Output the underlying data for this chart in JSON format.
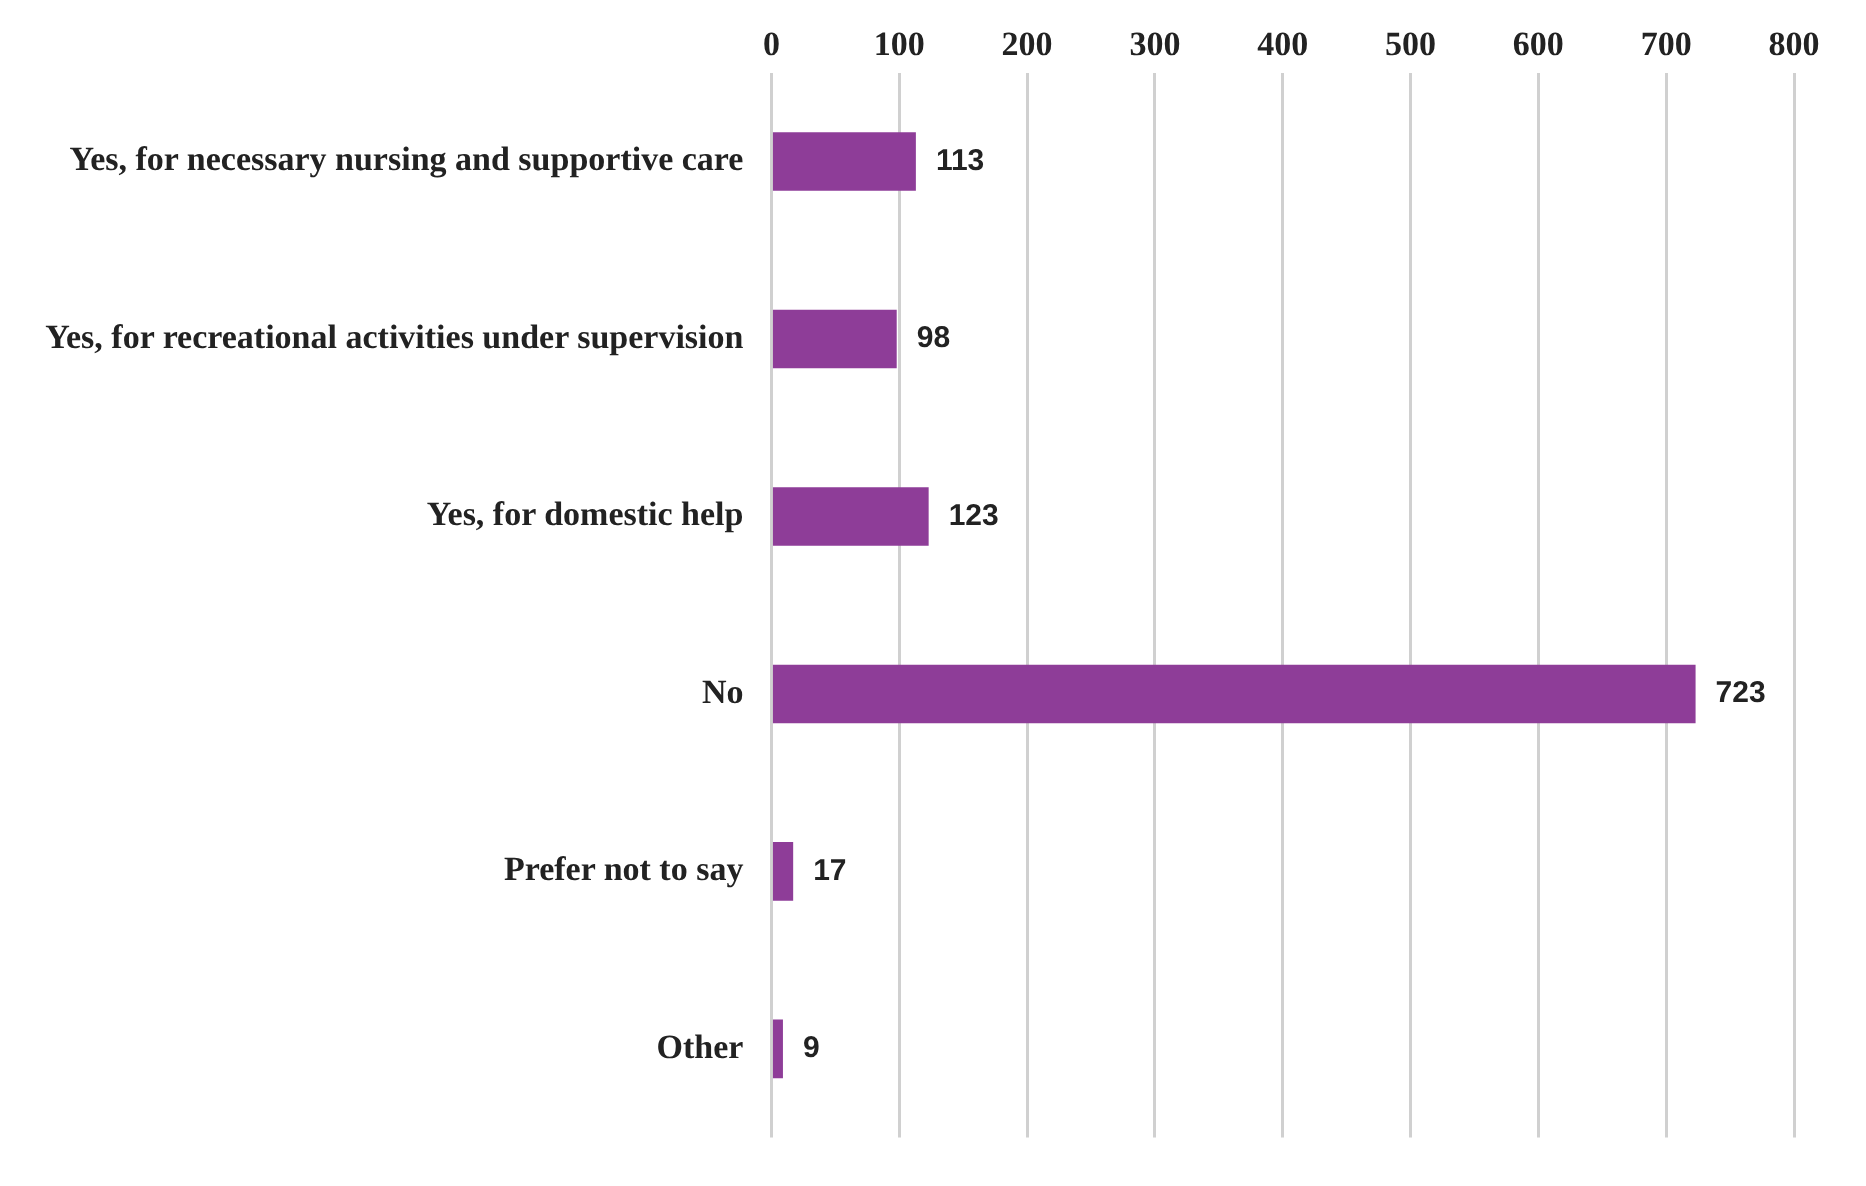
{
  "chart_data": {
    "type": "bar",
    "orientation": "horizontal",
    "categories": [
      "Yes, for necessary nursing and supportive care",
      "Yes, for recreational activities under supervision",
      "Yes, for domestic help",
      "No",
      "Prefer not to say",
      "Other"
    ],
    "values": [
      113,
      98,
      123,
      723,
      17,
      9
    ],
    "color": "#8e3d98",
    "xlim": [
      0,
      800
    ],
    "xticks": [
      0,
      100,
      200,
      300,
      400,
      500,
      600,
      700,
      800
    ],
    "grid": "x",
    "data_labels": true
  }
}
